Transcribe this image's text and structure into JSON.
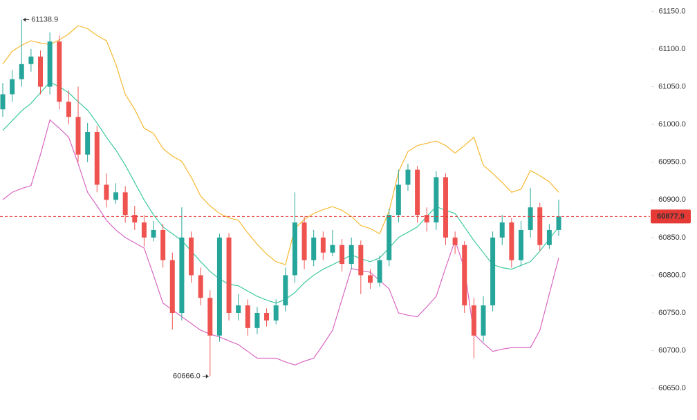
{
  "chart_data": {
    "type": "candlestick",
    "up_color": "#26a69a",
    "down_color": "#ef5350",
    "open": [
      61020,
      61040,
      61060,
      61080,
      61090,
      61050,
      61110,
      61030,
      61010,
      60960,
      60990,
      60920,
      60900,
      60910,
      60880,
      60870,
      60850,
      60860,
      60820,
      60750,
      60850,
      60800,
      60770,
      60720,
      60850,
      60750,
      60760,
      60730,
      60750,
      60740,
      60760,
      60800,
      60870,
      60820,
      60850,
      60830,
      60840,
      60815,
      60840,
      60800,
      60790,
      60820,
      60880,
      60920,
      60940,
      60880,
      60870,
      60930,
      60850,
      60840,
      60760,
      60720,
      60760,
      60850,
      60870,
      60820,
      60860,
      60890,
      60840,
      60860
    ],
    "high": [
      61055,
      61072,
      61138.9,
      61100,
      61098,
      61122,
      61118,
      61045,
      61050,
      61002,
      60998,
      60935,
      60922,
      60918,
      60892,
      60880,
      60872,
      60868,
      60830,
      60890,
      60858,
      60810,
      60780,
      60855,
      60856,
      60775,
      60768,
      60758,
      60756,
      60768,
      60810,
      60910,
      60878,
      60860,
      60858,
      60860,
      60848,
      60850,
      60846,
      60808,
      60826,
      60888,
      60940,
      60948,
      60945,
      60890,
      60938,
      60935,
      60858,
      60845,
      60770,
      60772,
      60858,
      60880,
      60876,
      60872,
      60916,
      60896,
      60868,
      60900
    ],
    "low": [
      61010,
      61030,
      61050,
      61070,
      61040,
      61040,
      61020,
      61000,
      60950,
      60950,
      60910,
      60890,
      60895,
      60870,
      60860,
      60838,
      60845,
      60810,
      60728,
      60740,
      60790,
      60760,
      60666.0,
      60712,
      60740,
      60740,
      60720,
      60722,
      60732,
      60735,
      60752,
      60790,
      60808,
      60812,
      60820,
      60825,
      60805,
      60808,
      60775,
      60782,
      60785,
      60812,
      60870,
      60912,
      60870,
      60858,
      60860,
      60840,
      60828,
      60750,
      60690,
      60712,
      60752,
      60840,
      60810,
      60812,
      60850,
      60832,
      60835,
      60852
    ],
    "close": [
      61040,
      61060,
      61080,
      61090,
      61050,
      61110,
      61030,
      61010,
      60960,
      60990,
      60920,
      60900,
      60910,
      60880,
      60870,
      60850,
      60860,
      60820,
      60750,
      60850,
      60800,
      60770,
      60720,
      60850,
      60750,
      60760,
      60730,
      60750,
      60740,
      60760,
      60800,
      60870,
      60820,
      60850,
      60830,
      60840,
      60815,
      60840,
      60800,
      60790,
      60820,
      60880,
      60920,
      60940,
      60880,
      60870,
      60930,
      60850,
      60840,
      60760,
      60720,
      60760,
      60850,
      60870,
      60820,
      60860,
      60890,
      60840,
      60860,
      60877.9
    ],
    "series": [
      {
        "color": "#f5b82e",
        "values": [
          61080,
          61097,
          61105,
          61111,
          61108,
          61106,
          61112,
          61120,
          61131,
          61127,
          61118,
          61111,
          61080,
          61040,
          61020,
          60995,
          60988,
          60968,
          60958,
          60951,
          60930,
          60905,
          60892,
          60882,
          60876,
          60873,
          60856,
          60841,
          60828,
          60818,
          60814,
          60862,
          60874,
          60882,
          60887,
          60891,
          60886,
          60878,
          60866,
          60862,
          60855,
          60885,
          60937,
          60964,
          60972,
          60975,
          60978,
          60972,
          60962,
          60972,
          60983,
          60946,
          60935,
          60923,
          60910,
          60914,
          60939,
          60932,
          60924,
          60910
        ]
      },
      {
        "color": "#3cc8a0",
        "values": [
          60992,
          61005,
          61018,
          61028,
          61042,
          61056,
          61050,
          61042,
          61030,
          61019,
          61002,
          60983,
          60966,
          60946,
          60923,
          60900,
          60880,
          60864,
          60855,
          60846,
          60832,
          60818,
          60805,
          60795,
          60788,
          60786,
          60779,
          60772,
          60767,
          60763,
          60768,
          60777,
          60790,
          60800,
          60808,
          60814,
          60820,
          60827,
          60822,
          60818,
          60823,
          60836,
          60850,
          60857,
          60864,
          60878,
          60891,
          60886,
          60882,
          60864,
          60846,
          60830,
          60814,
          60810,
          60808,
          60813,
          60818,
          60832,
          60848,
          60864
        ]
      },
      {
        "color": "#d966c2",
        "values": [
          60900,
          60910,
          60915,
          60919,
          60960,
          61006,
          60995,
          60983,
          60948,
          60910,
          60892,
          60873,
          60860,
          60850,
          60843,
          60836,
          60800,
          60763,
          60754,
          60745,
          60736,
          60727,
          60722,
          60718,
          60713,
          60708,
          60699,
          60690,
          60690,
          60690,
          60685,
          60681,
          60686,
          60690,
          60708,
          60727,
          60768,
          60809,
          60806,
          60804,
          60793,
          60782,
          60750,
          60747,
          60745,
          60758,
          60772,
          60810,
          60846,
          60809,
          60722,
          60710,
          60699,
          60702,
          60704,
          60704,
          60704,
          60727,
          60775,
          60823
        ]
      }
    ],
    "annotations": [
      "61138.9",
      "60666.0"
    ],
    "ylim": [
      60630,
      61165
    ],
    "yticks": [
      {
        "value": 60650,
        "label": "60650.0"
      },
      {
        "value": 60700,
        "label": "60700.0"
      },
      {
        "value": 60750,
        "label": "60750.0"
      },
      {
        "value": 60800,
        "label": "60800.0"
      },
      {
        "value": 60850,
        "label": "60850.0"
      },
      {
        "value": 60900,
        "label": "60900.0"
      },
      {
        "value": 60950,
        "label": "60950.0"
      },
      {
        "value": 61000,
        "label": "61000.0"
      },
      {
        "value": 61050,
        "label": "61050.0"
      },
      {
        "value": 61100,
        "label": "61100.0"
      },
      {
        "value": 61150,
        "label": "61150.0"
      }
    ],
    "last_price_color": "#e53935"
  }
}
